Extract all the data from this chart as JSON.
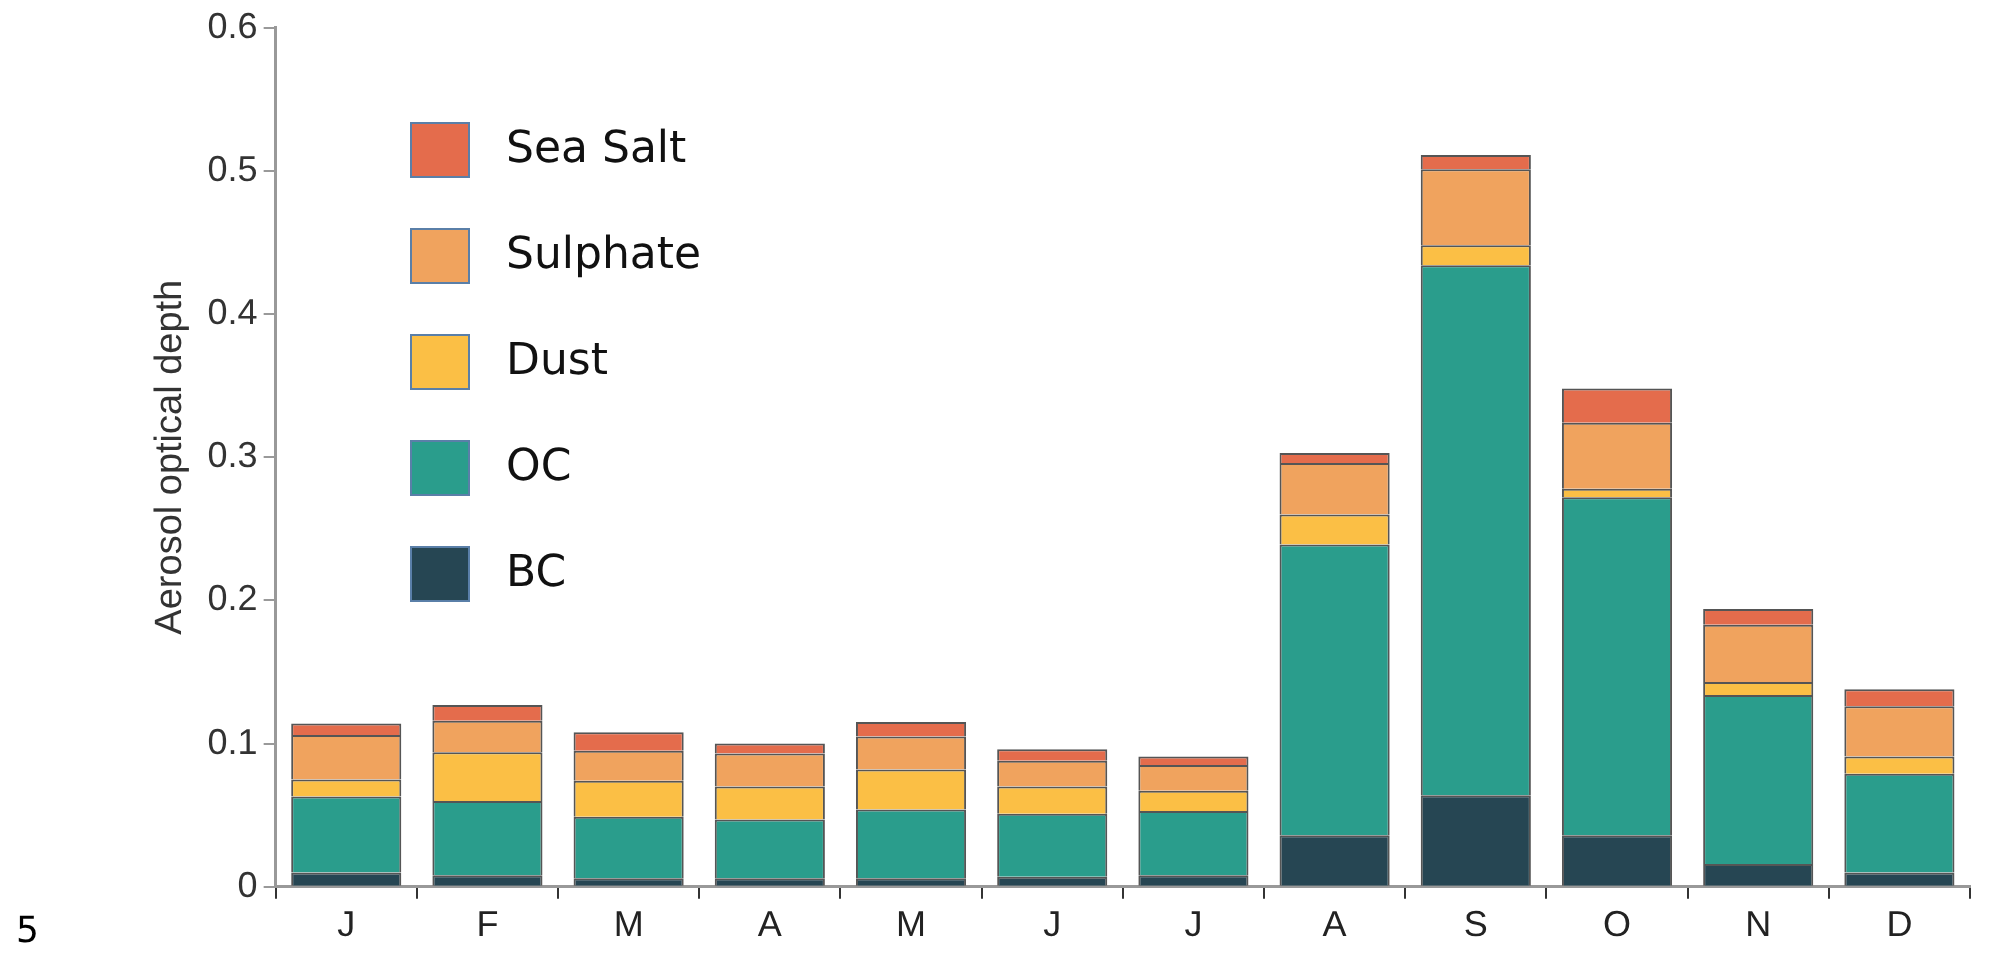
{
  "chart_data": {
    "type": "bar",
    "stacked": true,
    "ylabel": "Aerosol optical depth",
    "categories": [
      "J",
      "F",
      "M",
      "A",
      "M",
      "J",
      "J",
      "A",
      "S",
      "O",
      "N",
      "D"
    ],
    "series": [
      {
        "name": "BC",
        "color": "#264653",
        "values": [
          0.01,
          0.008,
          0.006,
          0.006,
          0.006,
          0.007,
          0.008,
          0.036,
          0.064,
          0.036,
          0.016,
          0.01
        ]
      },
      {
        "name": "OC",
        "color": "#2a9d8c",
        "values": [
          0.053,
          0.052,
          0.043,
          0.041,
          0.048,
          0.044,
          0.045,
          0.203,
          0.37,
          0.236,
          0.118,
          0.069
        ]
      },
      {
        "name": "Dust",
        "color": "#fbbf45",
        "values": [
          0.012,
          0.034,
          0.025,
          0.023,
          0.028,
          0.019,
          0.014,
          0.021,
          0.014,
          0.006,
          0.009,
          0.012
        ]
      },
      {
        "name": "Sulphate",
        "color": "#f0a35e",
        "values": [
          0.031,
          0.022,
          0.021,
          0.023,
          0.023,
          0.018,
          0.018,
          0.036,
          0.053,
          0.046,
          0.04,
          0.035
        ]
      },
      {
        "name": "Sea Salt",
        "color": "#e46c4c",
        "values": [
          0.008,
          0.011,
          0.013,
          0.007,
          0.01,
          0.008,
          0.006,
          0.007,
          0.01,
          0.024,
          0.011,
          0.012
        ]
      }
    ],
    "ylim": [
      0,
      0.6
    ],
    "yticks": [
      0,
      0.1,
      0.2,
      0.3,
      0.4,
      0.5,
      0.6
    ],
    "grid": false,
    "legend": "top left",
    "annotations": [
      "5"
    ]
  }
}
